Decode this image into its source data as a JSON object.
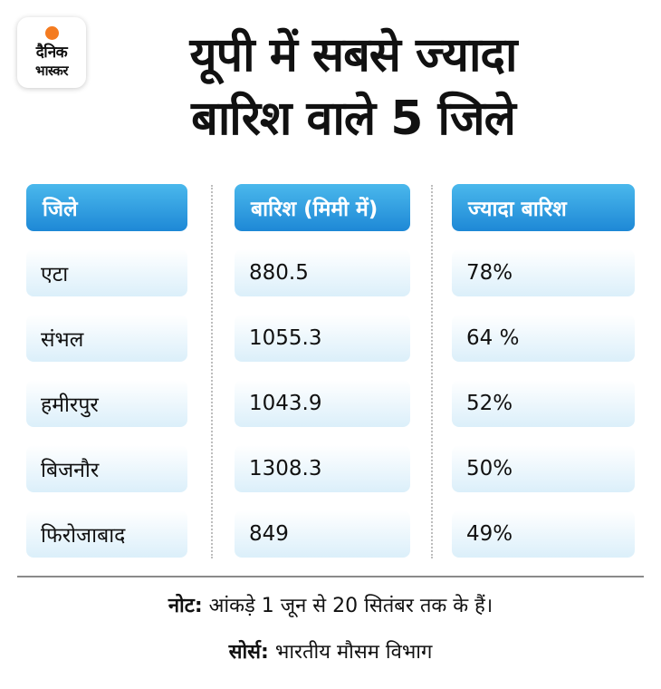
{
  "brand": {
    "logo_line1": "दैनिक",
    "logo_line2": "भास्कर",
    "accent": "#f47b20"
  },
  "title": {
    "line1": "यूपी में सबसे ज्यादा",
    "line2": "बारिश वाले 5 जिले"
  },
  "table": {
    "headers": [
      "जिले",
      "बारिश (मिमी में)",
      "ज्यादा बारिश"
    ],
    "rows": [
      {
        "district": "एटा",
        "rainfall": "880.5",
        "excess": "78%"
      },
      {
        "district": "संभल",
        "rainfall": "1055.3",
        "excess": "64 %"
      },
      {
        "district": "हमीरपुर",
        "rainfall": "1043.9",
        "excess": "52%"
      },
      {
        "district": "बिजनौर",
        "rainfall": "1308.3",
        "excess": "50%"
      },
      {
        "district": "फिरोजाबाद",
        "rainfall": "849",
        "excess": "49%"
      }
    ],
    "header_color": "#2b9ae0"
  },
  "footer": {
    "note_label": "नोट:",
    "note_text": "आंकड़े 1 जून से 20 सितंबर तक के हैं।",
    "source_label": "सोर्स:",
    "source_text": "भारतीय मौसम विभाग"
  }
}
